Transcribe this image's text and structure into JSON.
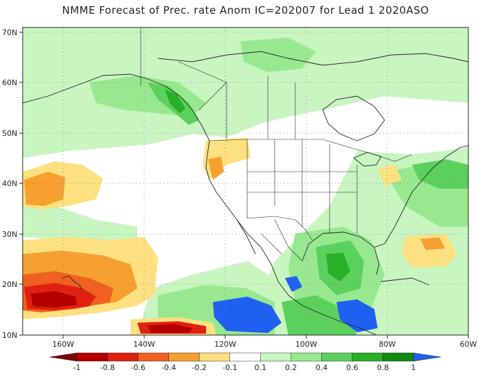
{
  "title": "NMME Forecast of Prec. rate Anom IC=202007 for Lead 1 2020ASO",
  "map": {
    "lat_labels": [
      "70N",
      "60N",
      "50N",
      "40N",
      "30N",
      "20N",
      "10N"
    ],
    "lon_labels": [
      "160W",
      "140W",
      "120W",
      "100W",
      "80W",
      "60W"
    ],
    "extent": {
      "lon": [
        -170,
        -60
      ],
      "lat": [
        10,
        73
      ]
    }
  },
  "colorbar": {
    "labels": [
      "-1",
      "-0.8",
      "-0.6",
      "-0.4",
      "-0.2",
      "-0.1",
      "0.1",
      "0.2",
      "0.4",
      "0.6",
      "0.8",
      "1"
    ],
    "colors": [
      "#7b0000",
      "#b40000",
      "#e02010",
      "#f06020",
      "#f5a030",
      "#fde080",
      "#ffffff",
      "#c8f5c0",
      "#98e890",
      "#5cd05c",
      "#28b028",
      "#108a10",
      "#2060f0"
    ]
  }
}
